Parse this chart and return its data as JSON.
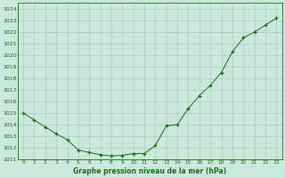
{
  "hours": [
    0,
    1,
    2,
    3,
    4,
    5,
    6,
    7,
    8,
    9,
    10,
    11,
    12,
    13,
    14,
    15,
    16,
    17,
    18,
    19,
    20,
    21,
    22,
    23
  ],
  "pressure": [
    1015.0,
    1014.4,
    1013.8,
    1013.2,
    1012.7,
    1011.8,
    1011.6,
    1011.4,
    1011.3,
    1011.35,
    1011.5,
    1011.5,
    1012.2,
    1013.9,
    1014.0,
    1015.4,
    1016.5,
    1017.4,
    1018.5,
    1020.3,
    1021.5,
    1022.0,
    1022.6,
    1023.2
  ],
  "line_color": "#1a6e1a",
  "marker": "+",
  "bg_color": "#cce8dc",
  "grid_color": "#a8c8b8",
  "tick_color": "#1a6e1a",
  "title": "Graphe pression niveau de la mer (hPa)",
  "ylim": [
    1011.0,
    1024.5
  ],
  "xlim": [
    -0.5,
    23.5
  ],
  "yticks": [
    1011,
    1012,
    1013,
    1014,
    1015,
    1016,
    1017,
    1018,
    1019,
    1020,
    1021,
    1022,
    1023,
    1024
  ],
  "xticks": [
    0,
    1,
    2,
    3,
    4,
    5,
    6,
    7,
    8,
    9,
    10,
    11,
    12,
    13,
    14,
    15,
    16,
    17,
    18,
    19,
    20,
    21,
    22,
    23
  ]
}
